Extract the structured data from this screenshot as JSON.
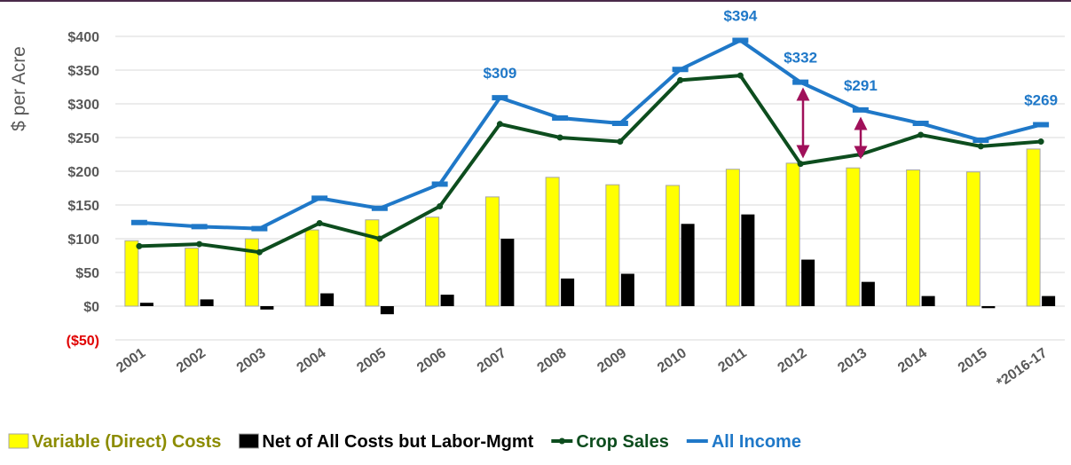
{
  "chart_data": {
    "type": "bar_line",
    "y_axis_label": "$ per Acre",
    "categories": [
      "2001",
      "2002",
      "2003",
      "2004",
      "2005",
      "2006",
      "2007",
      "2008",
      "2009",
      "2010",
      "2011",
      "2012",
      "2013",
      "2014",
      "2015",
      "*2016-17"
    ],
    "series": [
      {
        "name": "Variable (Direct) Costs",
        "kind": "bar",
        "color": "#ffff00",
        "legend_text_color": "#8c8c00",
        "values": [
          97,
          86,
          100,
          113,
          128,
          132,
          162,
          191,
          180,
          179,
          203,
          212,
          205,
          202,
          199,
          233
        ]
      },
      {
        "name": "Net of All Costs but Labor-Mgmt",
        "kind": "bar",
        "color": "#000000",
        "legend_text_color": "#000000",
        "values": [
          5,
          10,
          -5,
          19,
          -12,
          17,
          100,
          41,
          48,
          122,
          136,
          69,
          36,
          15,
          -3,
          15
        ]
      },
      {
        "name": "Crop Sales",
        "kind": "line",
        "color": "#0d4d1e",
        "legend_text_color": "#0d4d1e",
        "values": [
          89,
          92,
          80,
          123,
          100,
          148,
          270,
          250,
          244,
          335,
          342,
          211,
          225,
          254,
          237,
          244
        ]
      },
      {
        "name": "All Income",
        "kind": "line",
        "color": "#1f78c8",
        "legend_text_color": "#1f78c8",
        "values": [
          124,
          118,
          115,
          160,
          145,
          181,
          309,
          279,
          271,
          351,
          394,
          332,
          291,
          271,
          246,
          269
        ],
        "value_labels": [
          null,
          null,
          null,
          null,
          null,
          null,
          "$309",
          null,
          null,
          null,
          "$394",
          "$332",
          "$291",
          null,
          null,
          "$269"
        ]
      }
    ],
    "ylim": [
      -50,
      400
    ],
    "yticks": [
      {
        "value": -50,
        "label": "($50)"
      },
      {
        "value": 0,
        "label": "$0"
      },
      {
        "value": 50,
        "label": "$50"
      },
      {
        "value": 100,
        "label": "$100"
      },
      {
        "value": 150,
        "label": "$150"
      },
      {
        "value": 200,
        "label": "$200"
      },
      {
        "value": 250,
        "label": "$250"
      },
      {
        "value": 300,
        "label": "$300"
      },
      {
        "value": 350,
        "label": "$350"
      },
      {
        "value": 400,
        "label": "$400"
      }
    ],
    "negative_tick_color": "#e00000",
    "grid": true
  }
}
